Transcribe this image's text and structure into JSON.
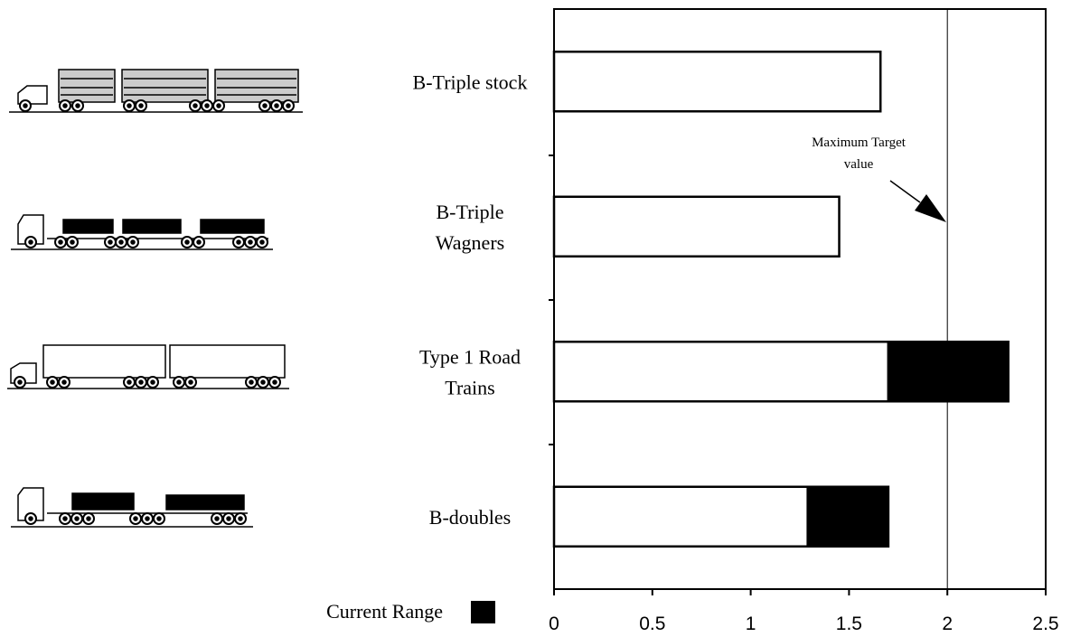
{
  "chart_data": {
    "type": "bar",
    "orientation": "horizontal",
    "stacked": true,
    "categories": [
      [
        "B-Triple stock"
      ],
      [
        "B-Triple",
        "Wagners"
      ],
      [
        "Type 1 Road",
        "Trains"
      ],
      [
        "B-doubles"
      ]
    ],
    "series": [
      {
        "color": "#ffffff",
        "values": [
          1.66,
          1.45,
          1.7,
          1.29
        ]
      },
      {
        "name": "Current Range",
        "color": "#000000",
        "values": [
          null,
          null,
          0.61,
          0.41
        ]
      }
    ],
    "xlim": [
      0,
      2.5
    ],
    "xticks": [
      0,
      0.5,
      1,
      1.5,
      2,
      2.5
    ],
    "target": {
      "value": 2,
      "lines": [
        "Maximum Target",
        "value"
      ]
    }
  }
}
